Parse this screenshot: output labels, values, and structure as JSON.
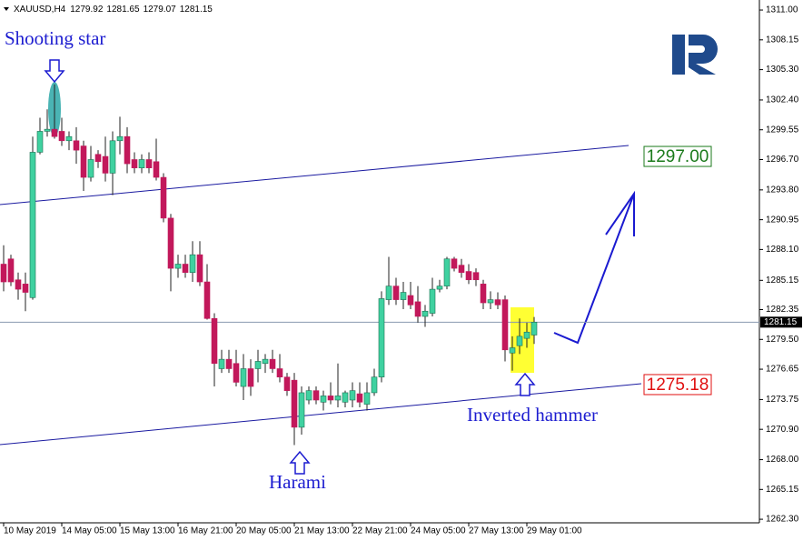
{
  "chart_data": {
    "type": "candlestick",
    "header": {
      "symbol": "XAUUSD,H4",
      "ohlc": [
        1279.92,
        1281.65,
        1279.07,
        1281.15
      ]
    },
    "colors": {
      "up": "#3fd1a0",
      "down": "#c2185b"
    },
    "categories": [
      "10 May 2019",
      null,
      null,
      null,
      null,
      null,
      null,
      null,
      "14 May 05:00",
      null,
      null,
      null,
      null,
      null,
      null,
      null,
      "15 May 13:00",
      null,
      null,
      null,
      null,
      null,
      null,
      null,
      "16 May 21:00",
      null,
      null,
      null,
      null,
      null,
      null,
      null,
      "20 May 05:00",
      null,
      null,
      null,
      null,
      null,
      null,
      null,
      "21 May 13:00",
      null,
      null,
      null,
      null,
      null,
      null,
      null,
      "22 May 21:00",
      null,
      null,
      null,
      null,
      null,
      null,
      null,
      "24 May 05:00",
      null,
      null,
      null,
      null,
      null,
      null,
      null,
      "27 May 13:00",
      null,
      null,
      null,
      null,
      null,
      null,
      null,
      "29 May 01:00",
      null
    ],
    "candles": [
      [
        1286.7,
        1288.5,
        1284.1,
        1285.0
      ],
      [
        1287.2,
        1287.6,
        1284.6,
        1285.0
      ],
      [
        1285.2,
        1285.9,
        1283.3,
        1284.3
      ],
      [
        1284.8,
        1285.9,
        1282.2,
        1284.0
      ],
      [
        1283.5,
        1298.9,
        1283.3,
        1297.4
      ],
      [
        1297.4,
        1300.7,
        1297.2,
        1299.4
      ],
      [
        1299.4,
        1301.5,
        1298.9,
        1299.6
      ],
      [
        1299.6,
        1303.9,
        1298.7,
        1298.9
      ],
      [
        1299.4,
        1300.7,
        1298.0,
        1298.5
      ],
      [
        1298.5,
        1299.4,
        1297.6,
        1298.9
      ],
      [
        1298.5,
        1299.8,
        1296.3,
        1297.6
      ],
      [
        1298.0,
        1298.5,
        1293.7,
        1295.0
      ],
      [
        1295.0,
        1298.0,
        1294.6,
        1296.7
      ],
      [
        1297.2,
        1297.6,
        1295.9,
        1296.5
      ],
      [
        1297.0,
        1298.9,
        1294.6,
        1295.4
      ],
      [
        1295.4,
        1299.4,
        1293.3,
        1298.5
      ],
      [
        1298.5,
        1300.8,
        1297.2,
        1298.9
      ],
      [
        1298.9,
        1299.8,
        1295.4,
        1296.3
      ],
      [
        1296.7,
        1297.4,
        1295.4,
        1295.9
      ],
      [
        1295.9,
        1297.2,
        1295.4,
        1296.7
      ],
      [
        1296.7,
        1297.4,
        1295.4,
        1295.9
      ],
      [
        1296.5,
        1298.7,
        1294.7,
        1295.0
      ],
      [
        1295.0,
        1295.4,
        1290.7,
        1291.1
      ],
      [
        1291.1,
        1291.5,
        1284.1,
        1286.3
      ],
      [
        1286.3,
        1287.6,
        1285.4,
        1286.7
      ],
      [
        1286.7,
        1287.6,
        1285.4,
        1285.9
      ],
      [
        1285.9,
        1288.9,
        1285.0,
        1287.6
      ],
      [
        1287.6,
        1288.9,
        1284.6,
        1285.0
      ],
      [
        1285.0,
        1286.7,
        1281.4,
        1281.5
      ],
      [
        1281.5,
        1282.0,
        1275.0,
        1277.2
      ],
      [
        1276.7,
        1278.5,
        1276.3,
        1277.6
      ],
      [
        1277.6,
        1278.5,
        1276.3,
        1276.7
      ],
      [
        1277.2,
        1278.5,
        1275.0,
        1275.4
      ],
      [
        1275.0,
        1278.1,
        1273.7,
        1276.7
      ],
      [
        1276.7,
        1277.6,
        1274.1,
        1275.0
      ],
      [
        1276.7,
        1278.5,
        1275.4,
        1277.4
      ],
      [
        1277.2,
        1278.1,
        1276.3,
        1277.6
      ],
      [
        1277.6,
        1278.5,
        1276.3,
        1276.7
      ],
      [
        1276.7,
        1278.1,
        1275.4,
        1275.9
      ],
      [
        1275.9,
        1276.3,
        1274.1,
        1274.6
      ],
      [
        1275.6,
        1276.3,
        1269.4,
        1271.1
      ],
      [
        1271.1,
        1275.0,
        1270.4,
        1274.4
      ],
      [
        1273.7,
        1275.0,
        1273.3,
        1274.6
      ],
      [
        1274.6,
        1275.0,
        1273.3,
        1273.7
      ],
      [
        1273.5,
        1274.6,
        1272.7,
        1274.1
      ],
      [
        1274.1,
        1275.4,
        1273.3,
        1273.7
      ],
      [
        1273.7,
        1277.2,
        1273.0,
        1274.1
      ],
      [
        1273.5,
        1274.6,
        1273.0,
        1274.4
      ],
      [
        1273.7,
        1275.4,
        1273.0,
        1274.6
      ],
      [
        1274.3,
        1275.4,
        1273.0,
        1273.5
      ],
      [
        1273.3,
        1275.4,
        1272.7,
        1274.4
      ],
      [
        1274.4,
        1276.7,
        1274.1,
        1275.9
      ],
      [
        1275.9,
        1284.1,
        1275.4,
        1283.4
      ],
      [
        1283.3,
        1287.4,
        1282.8,
        1284.6
      ],
      [
        1284.6,
        1285.4,
        1282.8,
        1283.3
      ],
      [
        1283.3,
        1285.0,
        1282.4,
        1284.0
      ],
      [
        1283.7,
        1285.0,
        1282.4,
        1282.8
      ],
      [
        1283.1,
        1284.6,
        1281.1,
        1281.7
      ],
      [
        1281.7,
        1282.8,
        1280.7,
        1282.2
      ],
      [
        1282.0,
        1285.4,
        1281.7,
        1284.3
      ],
      [
        1284.3,
        1285.2,
        1284.0,
        1284.6
      ],
      [
        1284.6,
        1287.4,
        1284.3,
        1287.2
      ],
      [
        1287.2,
        1287.4,
        1286.0,
        1286.3
      ],
      [
        1286.6,
        1287.2,
        1285.4,
        1285.9
      ],
      [
        1286.0,
        1286.7,
        1284.8,
        1285.2
      ],
      [
        1285.9,
        1286.3,
        1284.6,
        1285.2
      ],
      [
        1284.8,
        1285.2,
        1282.4,
        1283.0
      ],
      [
        1283.0,
        1284.1,
        1282.4,
        1283.3
      ],
      [
        1283.3,
        1284.0,
        1282.4,
        1282.8
      ],
      [
        1283.3,
        1283.7,
        1277.4,
        1278.5
      ],
      [
        1278.2,
        1279.8,
        1276.5,
        1278.7
      ],
      [
        1278.9,
        1281.5,
        1278.1,
        1279.8
      ],
      [
        1279.6,
        1281.1,
        1278.7,
        1280.2
      ],
      [
        1279.92,
        1281.65,
        1279.07,
        1281.15
      ]
    ],
    "ylim": [
      1261.96,
      1311.96
    ],
    "yticks": [
      {
        "value": 1311,
        "label": "1311.00"
      },
      1308.15,
      {
        "value": 1305.3,
        "label": "1305.30"
      },
      {
        "value": 1302.4,
        "label": "1302.40"
      },
      1299.55,
      {
        "value": 1296.7,
        "label": "1296.70"
      },
      {
        "value": 1293.8,
        "label": "1293.80"
      },
      1290.95,
      {
        "value": 1288.1,
        "label": "1288.10"
      },
      1285.15,
      1282.35,
      {
        "value": 1279.5,
        "label": "1279.50"
      },
      1276.65,
      1273.75,
      {
        "value": 1270.9,
        "label": "1270.90"
      },
      {
        "value": 1268,
        "label": "1268.00"
      },
      1265.15,
      {
        "value": 1262.3,
        "label": "1262.30"
      }
    ],
    "current_price": 1281.15,
    "levels": [
      {
        "value": 1297,
        "label": "1297.00",
        "color": "#1b7a1b"
      },
      {
        "value": 1275.18,
        "label": "1275.18",
        "color": "#e01010"
      }
    ],
    "annotations": [
      "Shooting star",
      "Harami",
      "Inverted hammer"
    ]
  }
}
